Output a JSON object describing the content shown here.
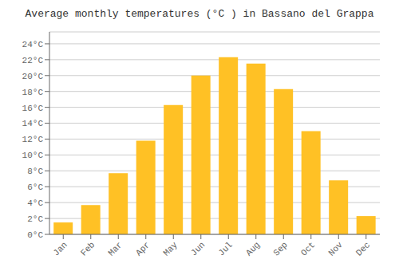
{
  "chart_data": {
    "type": "bar",
    "title": "Average monthly temperatures (°C ) in Bassano del Grappa",
    "categories": [
      "Jan",
      "Feb",
      "Mar",
      "Apr",
      "May",
      "Jun",
      "Jul",
      "Aug",
      "Sep",
      "Oct",
      "Nov",
      "Dec"
    ],
    "values": [
      1.5,
      3.7,
      7.7,
      11.8,
      16.3,
      20.0,
      22.3,
      21.5,
      18.3,
      13.0,
      6.8,
      2.3
    ],
    "color": "#FFC125",
    "ylim": [
      0,
      25.5
    ],
    "yticks": [
      {
        "value": 0,
        "label": "0°C"
      },
      {
        "value": 2,
        "label": "2°C"
      },
      {
        "value": 4,
        "label": "4°C"
      },
      {
        "value": 6,
        "label": "6°C"
      },
      {
        "value": 8,
        "label": "8°C"
      },
      {
        "value": 10,
        "label": "10°C"
      },
      {
        "value": 12,
        "label": "12°C"
      },
      {
        "value": 14,
        "label": "14°C"
      },
      {
        "value": 16,
        "label": "16°C"
      },
      {
        "value": 18,
        "label": "18°C"
      },
      {
        "value": 20,
        "label": "20°C"
      },
      {
        "value": 22,
        "label": "22°C"
      },
      {
        "value": 24,
        "label": "24°C"
      }
    ],
    "grid": true
  }
}
